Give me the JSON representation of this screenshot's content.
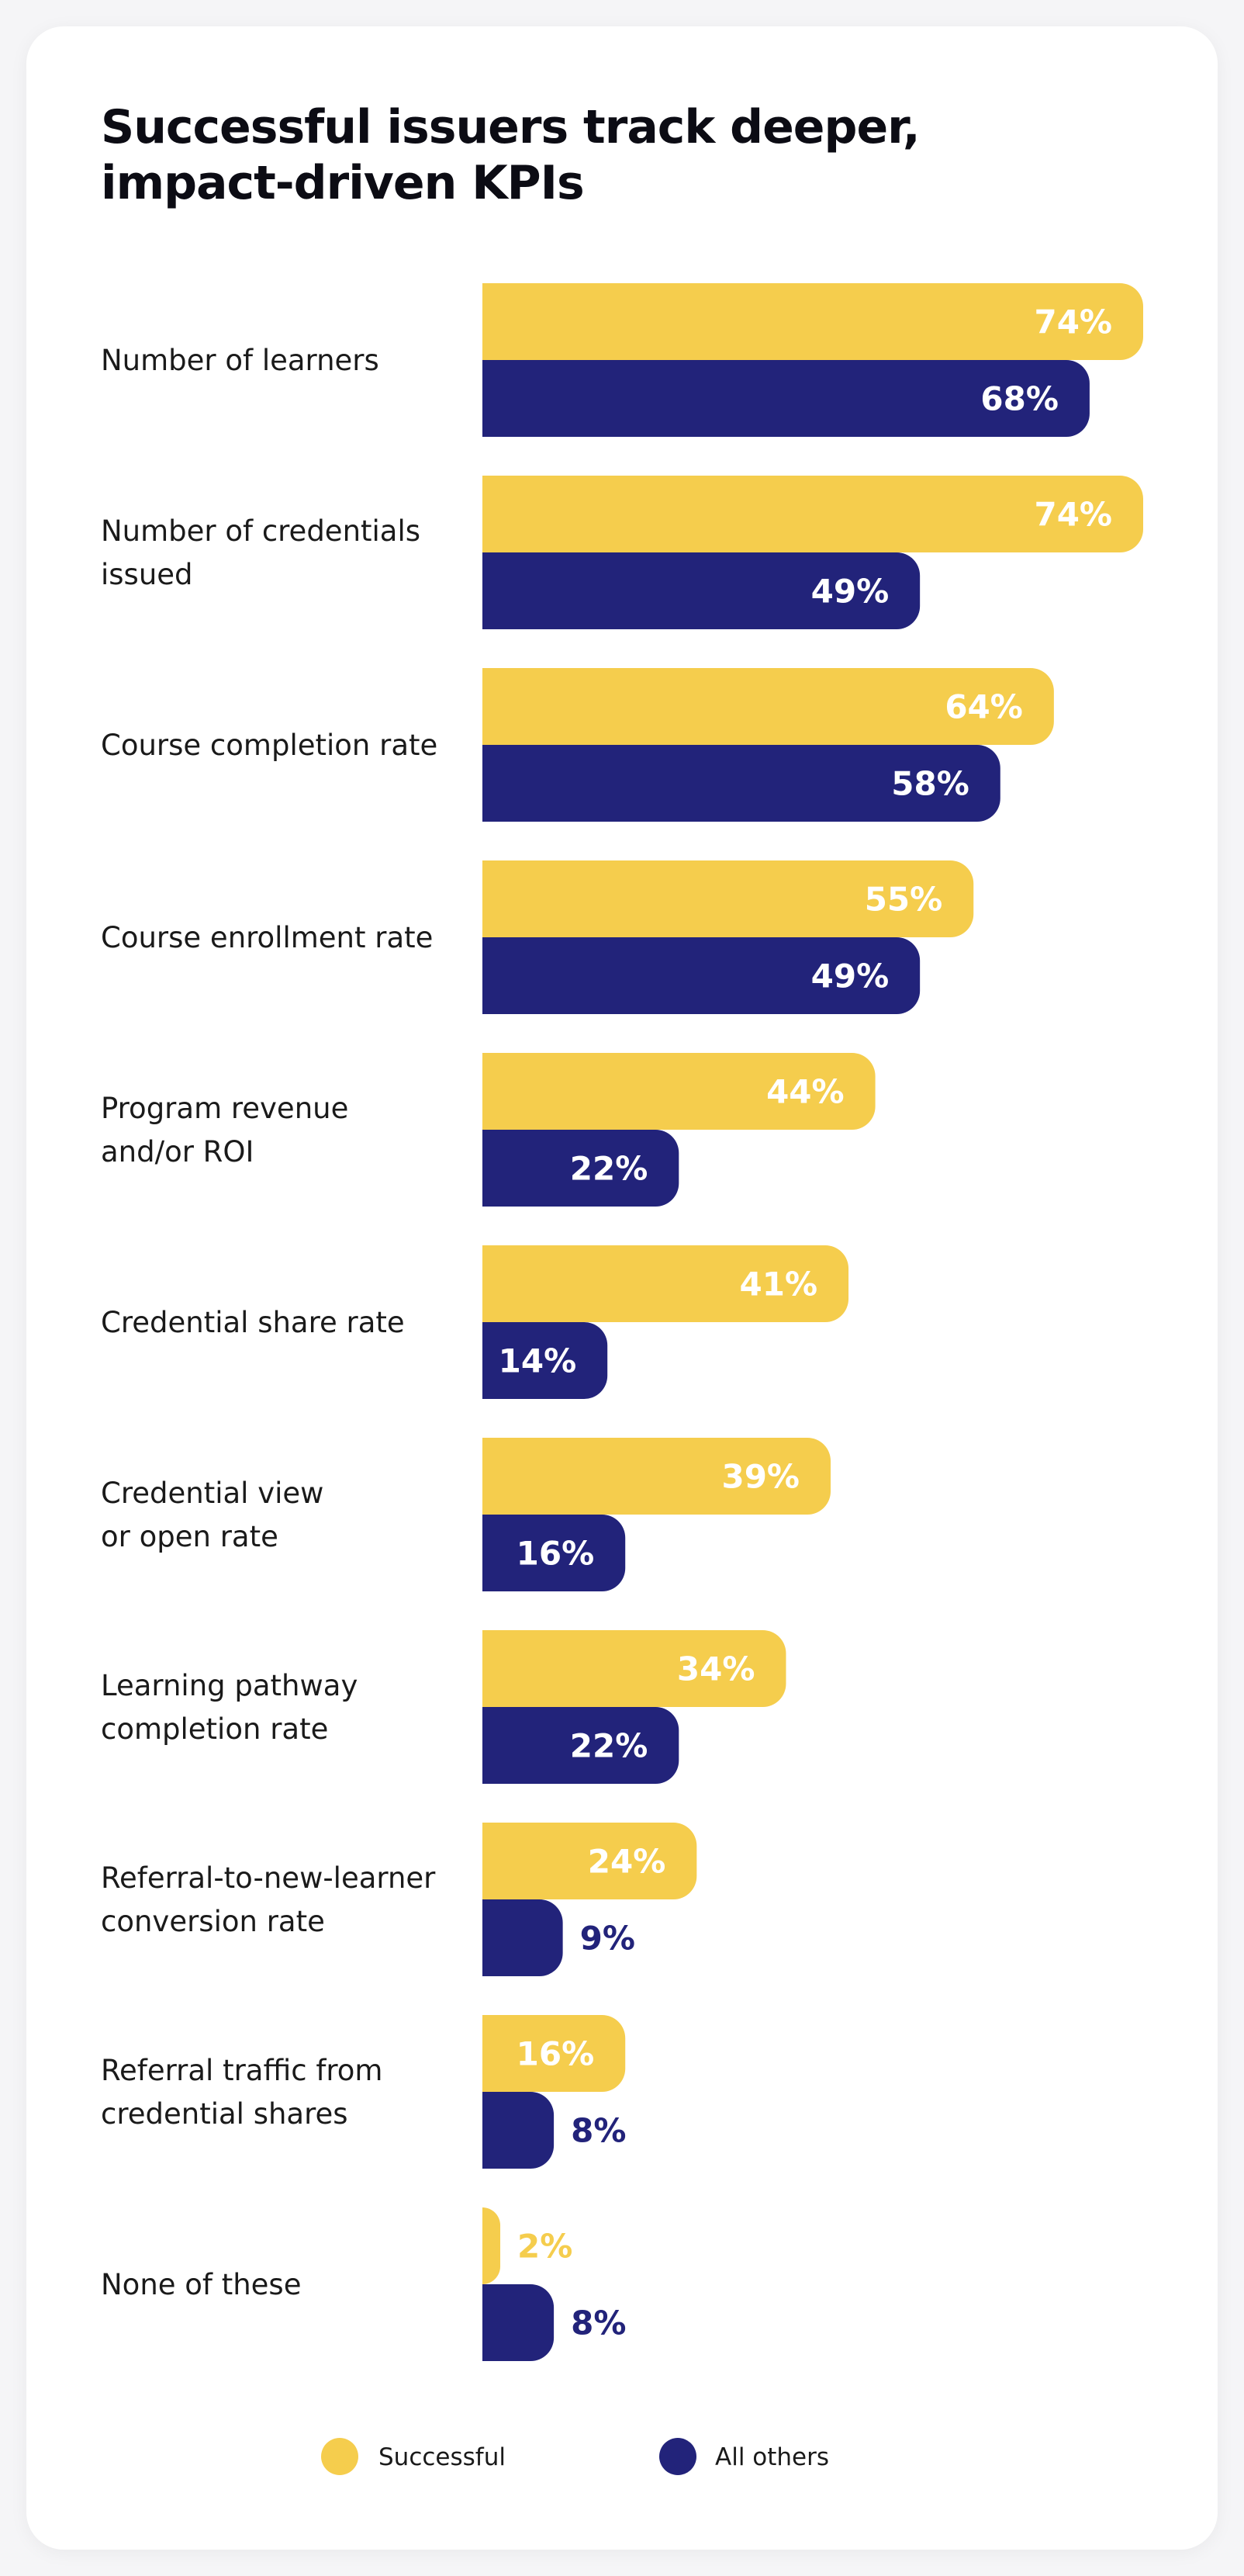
{
  "colors": {
    "successful": "#f5cd4d",
    "others": "#22237a",
    "label_inside": "#ffffff",
    "text": "#1a1a1a"
  },
  "chart_data": {
    "type": "bar",
    "orientation": "horizontal",
    "title": "Successful issuers track deeper, impact-driven KPIs",
    "categories": [
      [
        "Number of learners"
      ],
      [
        "Number of credentials",
        "issued"
      ],
      [
        "Course completion rate"
      ],
      [
        "Course enrollment rate"
      ],
      [
        "Program revenue",
        "and/or ROI"
      ],
      [
        "Credential share rate"
      ],
      [
        "Credential view",
        "or open rate"
      ],
      [
        "Learning pathway",
        "completion rate"
      ],
      [
        "Referral-to-new-learner",
        "conversion rate"
      ],
      [
        "Referral traffic from",
        "credential shares"
      ],
      [
        "None of these"
      ]
    ],
    "series": [
      {
        "name": "Successful",
        "values": [
          74,
          74,
          64,
          55,
          44,
          41,
          39,
          34,
          24,
          16,
          2
        ],
        "labels": [
          "74%",
          "74%",
          "64%",
          "55%",
          "44%",
          "41%",
          "39%",
          "34%",
          "24%",
          "16%",
          "2%"
        ]
      },
      {
        "name": "All others",
        "values": [
          68,
          49,
          58,
          49,
          22,
          14,
          16,
          22,
          9,
          8,
          8
        ],
        "labels": [
          "68%",
          "49%",
          "58%",
          "49%",
          "22%",
          "14%",
          "16%",
          "22%",
          "9%",
          "8%",
          "8%"
        ]
      }
    ],
    "xlim": [
      0,
      74
    ],
    "grid": false,
    "legend": [
      "Successful",
      "All others"
    ],
    "legend_position": "bottom-center"
  }
}
